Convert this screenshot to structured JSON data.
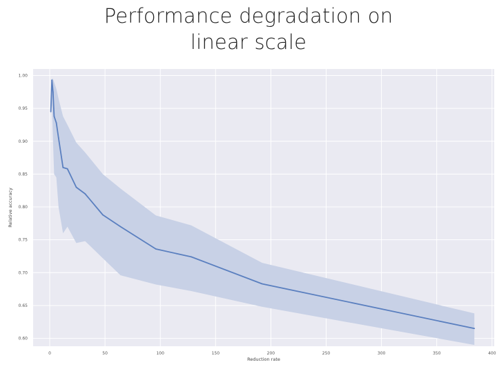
{
  "title_lines": [
    "Performance degradation on",
    "linear scale"
  ],
  "chart_data": {
    "type": "line",
    "title": "Performance degradation on linear scale",
    "xlabel": "Reduction rate",
    "ylabel": "Relative accuracy",
    "xlim": [
      -15,
      402
    ],
    "ylim": [
      0.588,
      1.01
    ],
    "xticks": [
      0,
      50,
      100,
      150,
      200,
      250,
      300,
      350,
      400
    ],
    "yticks": [
      0.6,
      0.65,
      0.7,
      0.75,
      0.8,
      0.85,
      0.9,
      0.95,
      1.0
    ],
    "grid": true,
    "background": "#eaeaf2",
    "line_color": "#5a7fbf",
    "band_color": "#c8d1e6",
    "series": [
      {
        "x": [
          1,
          2,
          3,
          4,
          6,
          8,
          12,
          16,
          24,
          32,
          48,
          64,
          96,
          128,
          192,
          384
        ],
        "y": [
          0.945,
          0.993,
          0.975,
          0.938,
          0.928,
          0.905,
          0.86,
          0.858,
          0.83,
          0.82,
          0.788,
          0.77,
          0.736,
          0.724,
          0.683,
          0.615
        ],
        "lower": [
          0.94,
          0.955,
          0.9,
          0.85,
          0.845,
          0.8,
          0.76,
          0.77,
          0.745,
          0.748,
          0.722,
          0.696,
          0.682,
          0.672,
          0.648,
          0.59
        ],
        "upper": [
          0.95,
          0.995,
          0.995,
          0.99,
          0.98,
          0.965,
          0.938,
          0.925,
          0.898,
          0.883,
          0.85,
          0.828,
          0.787,
          0.772,
          0.715,
          0.638
        ]
      }
    ]
  }
}
